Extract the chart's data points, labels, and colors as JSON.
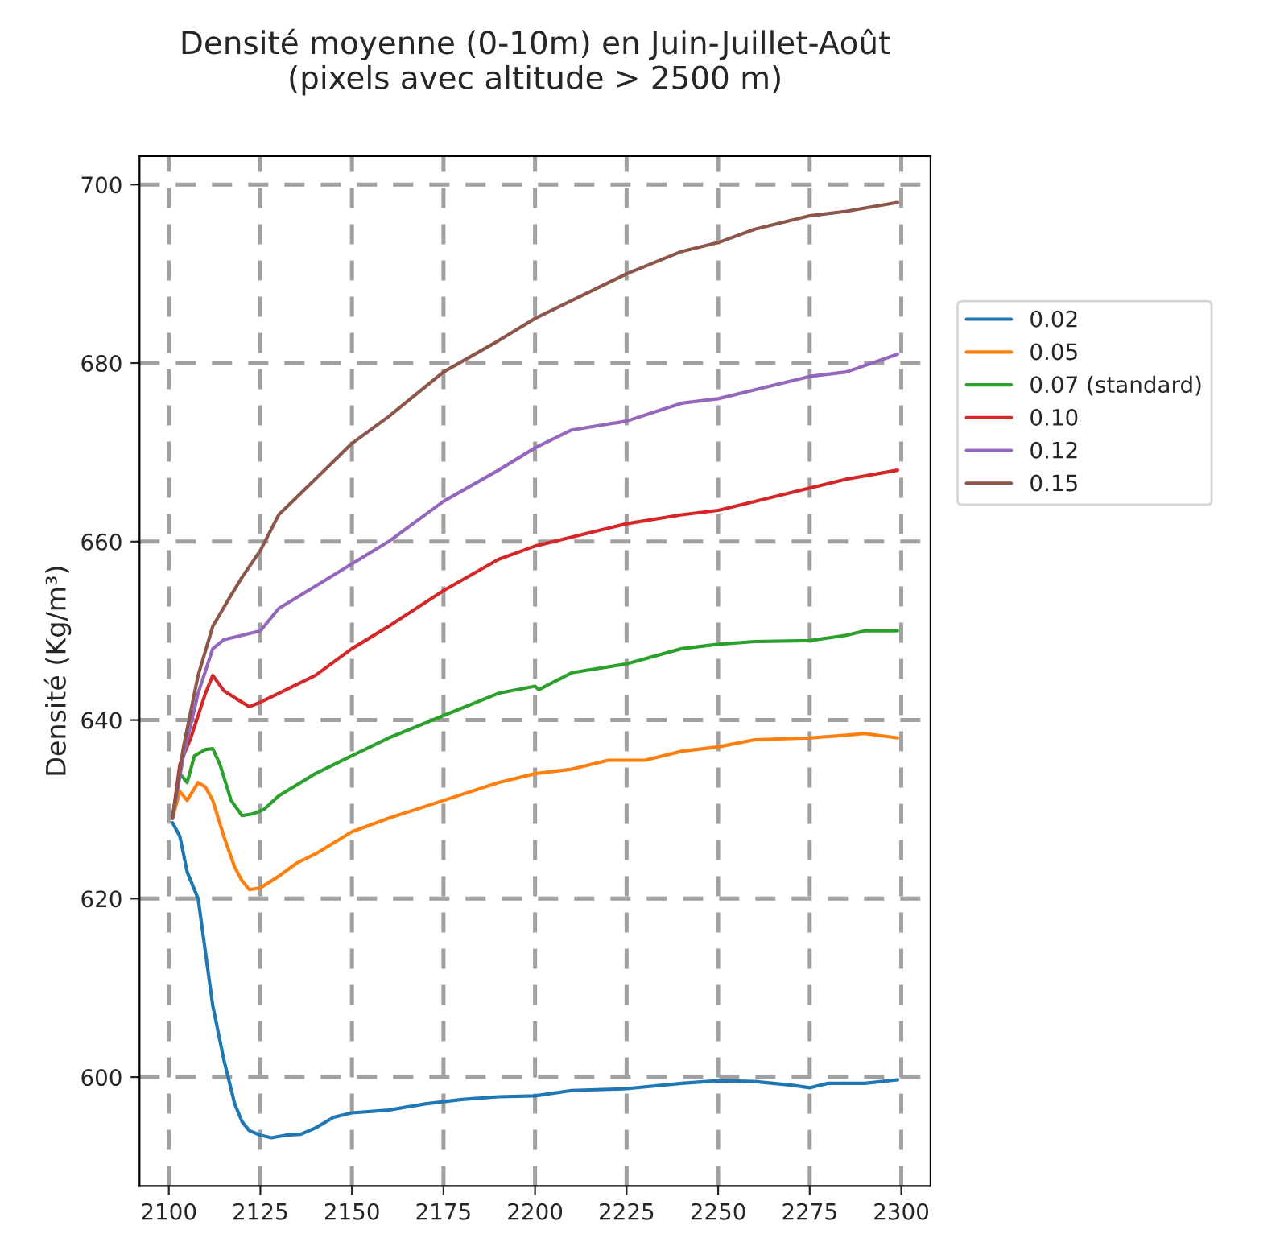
{
  "chart_data": {
    "type": "line",
    "title": "Densité moyenne (0-10m) en Juin-Juillet-Août\n(pixels avec altitude > 2500 m)",
    "ylabel": "Densité (Kg/m³)",
    "xlim": [
      2092,
      2308
    ],
    "xticks": [
      2100,
      2125,
      2150,
      2175,
      2200,
      2225,
      2250,
      2275,
      2300
    ],
    "ylim": [
      587.8,
      703.2
    ],
    "yticks": [
      600,
      620,
      640,
      660,
      680,
      700
    ],
    "grid": true,
    "legend": "right",
    "line_style": "solid",
    "series": [
      {
        "name": "0.02",
        "color": "#1f77b4",
        "x": [
          2101,
          2103,
          2105,
          2108,
          2110,
          2112,
          2115,
          2118,
          2120,
          2122,
          2125,
          2128,
          2132,
          2136,
          2140,
          2145,
          2150,
          2160,
          2170,
          2180,
          2190,
          2200,
          2210,
          2225,
          2240,
          2250,
          2260,
          2270,
          2275,
          2280,
          2290,
          2299
        ],
        "values": [
          628.5,
          627,
          623,
          620,
          614,
          608,
          602,
          597,
          595,
          594,
          593.5,
          593.2,
          593.5,
          593.6,
          594.3,
          595.5,
          596,
          596.3,
          597,
          597.5,
          597.8,
          597.9,
          598.5,
          598.7,
          599.3,
          599.6,
          599.5,
          599.1,
          598.8,
          599.3,
          599.3,
          599.7
        ]
      },
      {
        "name": "0.05",
        "color": "#ff7f0e",
        "x": [
          2101,
          2103,
          2105,
          2108,
          2110,
          2112,
          2115,
          2118,
          2120,
          2122,
          2125,
          2130,
          2135,
          2140,
          2150,
          2160,
          2175,
          2190,
          2200,
          2210,
          2220,
          2230,
          2240,
          2250,
          2260,
          2275,
          2285,
          2290,
          2299
        ],
        "values": [
          629,
          632,
          631,
          633,
          632.5,
          631,
          627,
          623.5,
          622,
          621,
          621.2,
          622.5,
          624,
          625,
          627.5,
          629,
          631,
          633,
          634,
          634.5,
          635.5,
          635.5,
          636.5,
          637,
          637.8,
          638,
          638.3,
          638.5,
          638
        ]
      },
      {
        "name": "0.07 (standard)",
        "color": "#2ca02c",
        "x": [
          2101,
          2103,
          2105,
          2107,
          2110,
          2112,
          2114,
          2117,
          2120,
          2123,
          2126,
          2130,
          2140,
          2150,
          2160,
          2175,
          2190,
          2200,
          2201,
          2210,
          2225,
          2240,
          2250,
          2260,
          2275,
          2285,
          2290,
          2299
        ],
        "values": [
          629,
          634,
          633,
          636,
          636.7,
          636.8,
          635,
          631,
          629.3,
          629.5,
          630,
          631.5,
          634,
          636,
          638,
          640.5,
          643,
          643.8,
          643.4,
          645.3,
          646.3,
          648,
          648.5,
          648.8,
          648.9,
          649.5,
          650,
          650
        ]
      },
      {
        "name": "0.10",
        "color": "#d62728",
        "x": [
          2101,
          2103,
          2106,
          2110,
          2112,
          2115,
          2118,
          2122,
          2125,
          2130,
          2140,
          2150,
          2160,
          2175,
          2190,
          2200,
          2210,
          2225,
          2240,
          2250,
          2260,
          2275,
          2285,
          2299
        ],
        "values": [
          629,
          635,
          638,
          643,
          645,
          643.3,
          642.5,
          641.5,
          642,
          643,
          645,
          648,
          650.5,
          654.5,
          658,
          659.5,
          660.5,
          662,
          663,
          663.5,
          664.5,
          666,
          667,
          668
        ]
      },
      {
        "name": "0.12",
        "color": "#9467bd",
        "x": [
          2101,
          2104,
          2108,
          2112,
          2115,
          2120,
          2125,
          2130,
          2140,
          2150,
          2160,
          2175,
          2190,
          2200,
          2210,
          2225,
          2240,
          2250,
          2260,
          2275,
          2285,
          2299
        ],
        "values": [
          629,
          636,
          643,
          648,
          649,
          649.5,
          650,
          652.5,
          655,
          657.5,
          660,
          664.5,
          668,
          670.5,
          672.5,
          673.5,
          675.5,
          676,
          677,
          678.5,
          679,
          681
        ]
      },
      {
        "name": "0.15",
        "color": "#8c564b",
        "x": [
          2101,
          2104,
          2108,
          2112,
          2117,
          2120,
          2125,
          2130,
          2140,
          2150,
          2160,
          2175,
          2190,
          2200,
          2210,
          2225,
          2240,
          2250,
          2260,
          2275,
          2285,
          2299
        ],
        "values": [
          629,
          637,
          645,
          650.5,
          654,
          656,
          659,
          663,
          667,
          671,
          674,
          679,
          682.5,
          685,
          687,
          690,
          692.5,
          693.5,
          695,
          696.5,
          697,
          698
        ]
      }
    ]
  }
}
